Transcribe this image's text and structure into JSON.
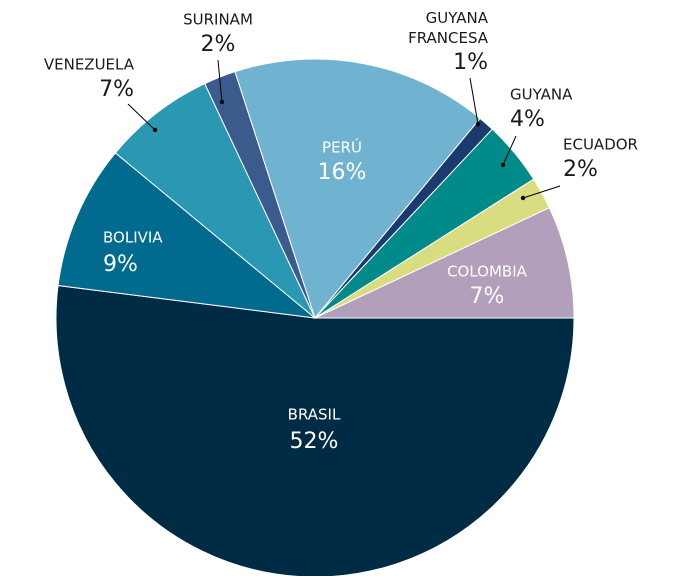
{
  "chart_data": {
    "type": "pie",
    "categories": [
      "BRASIL",
      "BOLIVIA",
      "VENEZUELA",
      "SURINAM",
      "PERÚ",
      "GUYANA FRANCESA",
      "GUYANA",
      "ECUADOR",
      "COLOMBIA"
    ],
    "values": [
      52,
      9,
      7,
      2,
      16,
      1,
      4,
      2,
      7
    ],
    "value_labels": [
      "52%",
      "9%",
      "7%",
      "2%",
      "16%",
      "1%",
      "4%",
      "2%",
      "7%"
    ],
    "colors": [
      "#002b44",
      "#006b8f",
      "#2a97b3",
      "#3b5b8c",
      "#70b3d1",
      "#1b3a6e",
      "#008a8a",
      "#d8dd80",
      "#b19fbc"
    ]
  }
}
